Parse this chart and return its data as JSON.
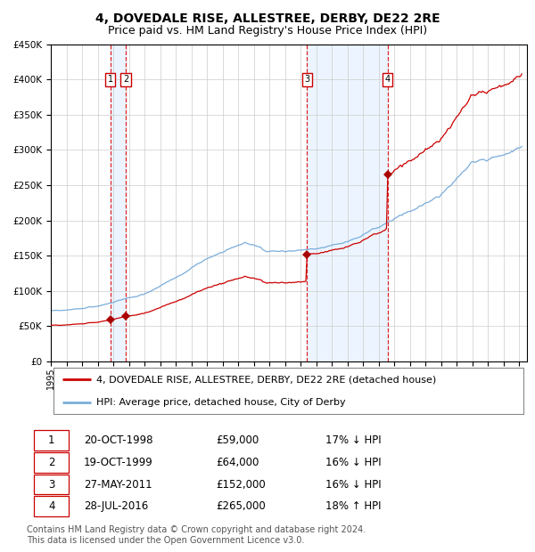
{
  "title": "4, DOVEDALE RISE, ALLESTREE, DERBY, DE22 2RE",
  "subtitle": "Price paid vs. HM Land Registry's House Price Index (HPI)",
  "ylim": [
    0,
    450000
  ],
  "yticks": [
    0,
    50000,
    100000,
    150000,
    200000,
    250000,
    300000,
    350000,
    400000,
    450000
  ],
  "xlim_start": 1995.0,
  "xlim_end": 2025.5,
  "sale_dates": [
    1998.81,
    1999.8,
    2011.41,
    2016.57
  ],
  "sale_prices": [
    59000,
    64000,
    152000,
    265000
  ],
  "sale_labels": [
    "1",
    "2",
    "3",
    "4"
  ],
  "vline_color": "#dd0000",
  "sale_marker_color": "#aa0000",
  "hpi_line_color": "#7aaddb",
  "price_line_color": "#cc0000",
  "bg_shade_color": "#ddeeff",
  "legend_label_price": "4, DOVEDALE RISE, ALLESTREE, DERBY, DE22 2RE (detached house)",
  "legend_label_hpi": "HPI: Average price, detached house, City of Derby",
  "table_rows": [
    [
      "1",
      "20-OCT-1998",
      "£59,000",
      "17% ↓ HPI"
    ],
    [
      "2",
      "19-OCT-1999",
      "£64,000",
      "16% ↓ HPI"
    ],
    [
      "3",
      "27-MAY-2011",
      "£152,000",
      "16% ↓ HPI"
    ],
    [
      "4",
      "28-JUL-2016",
      "£265,000",
      "18% ↑ HPI"
    ]
  ],
  "footer_text": "Contains HM Land Registry data © Crown copyright and database right 2024.\nThis data is licensed under the Open Government Licence v3.0.",
  "title_fontsize": 10,
  "subtitle_fontsize": 9,
  "axis_fontsize": 7.5,
  "legend_fontsize": 8,
  "table_fontsize": 8.5,
  "footer_fontsize": 7
}
